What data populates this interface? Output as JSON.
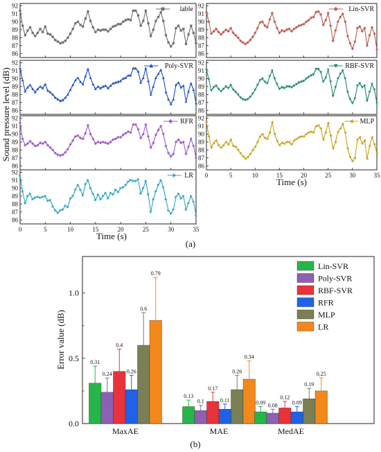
{
  "chart_data": [
    {
      "type": "line",
      "panel": "(a)",
      "ylabel": "Sound pressure level (dB)",
      "xlabel": "Time (s)",
      "xlim": [
        0,
        35
      ],
      "ylim": [
        85.5,
        92.3
      ],
      "xticks": [
        "0",
        "5",
        "10",
        "15",
        "20",
        "25",
        "30",
        "35"
      ],
      "yticks": [
        "86",
        "87",
        "88",
        "89",
        "90",
        "91",
        "92"
      ],
      "x": [
        0,
        0.5,
        1,
        1.5,
        2,
        2.5,
        3,
        3.5,
        4,
        4.5,
        5,
        5.5,
        6,
        6.5,
        7,
        7.5,
        8,
        8.5,
        9,
        9.5,
        10,
        10.5,
        11,
        11.5,
        12,
        12.5,
        13,
        13.5,
        14,
        14.5,
        15,
        15.5,
        16,
        16.5,
        17,
        17.5,
        18,
        18.5,
        19,
        19.5,
        20,
        20.5,
        21,
        21.5,
        22,
        22.5,
        23,
        23.5,
        24,
        24.5,
        25,
        25.5,
        26,
        26.5,
        27,
        27.5,
        28,
        28.5,
        29,
        29.5,
        30,
        30.5,
        31,
        31.5,
        32,
        32.5,
        33,
        33.5,
        34,
        34.5,
        35
      ],
      "series": [
        {
          "name": "lable",
          "color": "#6e6e6e",
          "marker": "square",
          "values": [
            91.4,
            89.5,
            88.3,
            88.9,
            89.3,
            88.6,
            88.2,
            88.6,
            89.1,
            88.7,
            89.4,
            88.5,
            88.4,
            88.1,
            87.7,
            87.5,
            87.3,
            87.4,
            87.6,
            88.0,
            88.5,
            89.1,
            89.8,
            90.0,
            89.6,
            89.4,
            90.4,
            91.3,
            90.1,
            89.3,
            88.7,
            89.0,
            88.9,
            89.0,
            89.0,
            88.8,
            89.1,
            89.4,
            89.5,
            89.7,
            89.7,
            90.0,
            90.2,
            90.3,
            90.2,
            91.4,
            91.4,
            90.8,
            89.5,
            90.1,
            91.4,
            89.8,
            88.2,
            89.0,
            90.1,
            90.6,
            91.2,
            90.1,
            88.3,
            87.4,
            86.9,
            87.3,
            89.2,
            89.5,
            88.9,
            89.1,
            87.2,
            88.4,
            89.5,
            88.6,
            87.3
          ]
        },
        {
          "name": "Lin-SVR",
          "color": "#c05a4f",
          "marker": "diamond",
          "values": [
            91.2,
            90.0,
            88.5,
            88.8,
            89.1,
            88.7,
            88.4,
            88.7,
            89.0,
            88.8,
            89.2,
            88.6,
            88.3,
            88.0,
            87.6,
            87.4,
            87.2,
            87.4,
            87.7,
            88.1,
            88.6,
            89.2,
            89.9,
            90.0,
            89.5,
            89.3,
            90.3,
            91.1,
            90.0,
            89.2,
            88.6,
            88.9,
            88.8,
            89.0,
            89.1,
            88.8,
            89.1,
            89.3,
            89.5,
            89.6,
            89.7,
            90.0,
            90.2,
            90.5,
            90.6,
            91.2,
            91.3,
            90.9,
            89.6,
            90.2,
            91.1,
            89.5,
            87.6,
            88.9,
            90.0,
            90.6,
            91.0,
            90.0,
            88.2,
            87.3,
            86.6,
            87.5,
            89.2,
            89.4,
            88.8,
            89.2,
            87.0,
            88.3,
            89.3,
            88.5,
            86.5
          ]
        },
        {
          "name": "Poly-SVR",
          "color": "#1f4fbf",
          "marker": "triangle-up",
          "values": [
            91.3,
            89.8,
            88.4,
            88.9,
            89.2,
            88.7,
            88.3,
            88.7,
            89.0,
            88.8,
            89.3,
            88.5,
            88.3,
            88.0,
            87.6,
            87.4,
            87.2,
            87.3,
            87.6,
            88.0,
            88.6,
            89.2,
            89.8,
            90.1,
            89.6,
            89.3,
            90.3,
            91.2,
            90.1,
            89.3,
            88.7,
            89.0,
            88.8,
            89.0,
            89.1,
            88.8,
            89.1,
            89.4,
            89.5,
            89.6,
            89.7,
            90.0,
            90.1,
            90.4,
            90.4,
            91.3,
            91.3,
            90.9,
            89.5,
            90.1,
            91.3,
            89.7,
            88.0,
            89.0,
            90.1,
            90.6,
            91.1,
            90.1,
            88.3,
            87.4,
            86.8,
            87.4,
            89.2,
            89.5,
            88.9,
            89.1,
            87.1,
            88.4,
            89.4,
            88.6,
            86.9
          ]
        },
        {
          "name": "RBF-SVR",
          "color": "#1e8a6e",
          "marker": "triangle-down",
          "values": [
            91.1,
            89.9,
            88.5,
            88.9,
            89.1,
            88.7,
            88.4,
            88.7,
            89.0,
            88.8,
            89.2,
            88.6,
            88.3,
            88.0,
            87.6,
            87.4,
            87.3,
            87.4,
            87.7,
            88.1,
            88.6,
            89.2,
            89.8,
            90.0,
            89.6,
            89.4,
            90.3,
            91.0,
            90.0,
            89.3,
            88.7,
            88.9,
            88.8,
            89.0,
            89.0,
            88.9,
            89.1,
            89.3,
            89.5,
            89.6,
            89.7,
            90.0,
            90.2,
            90.4,
            90.5,
            91.2,
            91.2,
            90.8,
            89.6,
            90.1,
            91.1,
            89.6,
            87.8,
            88.9,
            90.0,
            90.6,
            91.0,
            90.0,
            88.3,
            87.4,
            86.9,
            87.5,
            89.1,
            89.4,
            88.9,
            89.1,
            87.2,
            88.3,
            89.3,
            88.6,
            86.9
          ]
        },
        {
          "name": "RFR",
          "color": "#a15cc9",
          "marker": "diamond",
          "values": [
            91.4,
            89.4,
            88.6,
            88.8,
            89.1,
            88.8,
            88.5,
            88.6,
            88.9,
            88.8,
            89.0,
            88.6,
            88.3,
            88.0,
            87.6,
            87.4,
            87.3,
            87.4,
            87.7,
            88.1,
            88.7,
            89.2,
            89.7,
            89.8,
            89.5,
            89.4,
            90.1,
            91.1,
            90.0,
            89.4,
            88.8,
            89.0,
            88.9,
            89.0,
            88.9,
            88.8,
            89.0,
            89.3,
            89.4,
            89.6,
            89.6,
            89.9,
            90.1,
            90.3,
            90.2,
            91.2,
            91.2,
            90.6,
            89.5,
            90.0,
            91.2,
            89.7,
            88.3,
            88.9,
            89.9,
            90.5,
            91.0,
            90.0,
            88.5,
            87.6,
            87.2,
            87.5,
            89.0,
            89.3,
            88.9,
            89.0,
            87.5,
            88.4,
            89.4,
            88.5,
            87.0
          ]
        },
        {
          "name": "MLP",
          "color": "#c9a21a",
          "marker": "triangle-left",
          "values": [
            91.5,
            89.7,
            88.3,
            88.9,
            89.2,
            88.6,
            88.3,
            88.6,
            89.0,
            88.7,
            89.3,
            88.5,
            88.4,
            88.0,
            87.6,
            87.2,
            86.9,
            87.1,
            87.5,
            88.0,
            88.4,
            89.0,
            89.7,
            90.0,
            89.5,
            89.4,
            90.2,
            91.5,
            90.0,
            89.1,
            88.6,
            88.9,
            88.8,
            89.0,
            89.0,
            88.7,
            89.2,
            89.4,
            89.6,
            89.7,
            89.7,
            90.0,
            90.2,
            90.3,
            90.2,
            91.0,
            91.1,
            90.7,
            89.3,
            90.2,
            91.4,
            89.8,
            88.2,
            89.0,
            90.3,
            90.7,
            91.3,
            90.2,
            88.2,
            87.1,
            86.6,
            87.0,
            89.3,
            89.6,
            88.8,
            89.2,
            86.9,
            88.5,
            89.6,
            88.7,
            87.6
          ]
        },
        {
          "name": "LR",
          "color": "#2ea6c6",
          "marker": "triangle-right",
          "values": [
            91.6,
            89.6,
            88.1,
            89.0,
            89.3,
            88.6,
            88.8,
            88.9,
            88.8,
            88.9,
            89.0,
            88.4,
            88.5,
            87.7,
            87.2,
            86.9,
            87.2,
            87.3,
            87.8,
            87.6,
            88.7,
            89.0,
            89.8,
            90.4,
            89.8,
            89.1,
            90.5,
            91.0,
            90.0,
            89.3,
            88.5,
            89.2,
            88.6,
            89.0,
            89.4,
            88.7,
            89.4,
            89.2,
            89.8,
            89.5,
            90.0,
            90.1,
            90.4,
            90.8,
            91.0,
            90.9,
            90.9,
            91.1,
            89.3,
            90.0,
            90.9,
            89.2,
            87.0,
            88.6,
            89.6,
            90.4,
            91.0,
            90.1,
            88.6,
            87.2,
            86.8,
            87.3,
            88.9,
            89.3,
            88.7,
            89.0,
            87.3,
            88.1,
            89.0,
            88.3,
            86.6
          ]
        }
      ]
    },
    {
      "type": "bar",
      "panel": "(b)",
      "ylabel": "Error value (dB)",
      "ylim": [
        0,
        1.28
      ],
      "yticks": [
        "0.0",
        "0.5",
        "1.0"
      ],
      "categories": [
        "MaxAE",
        "MAE",
        "MedAE"
      ],
      "series": [
        {
          "name": "Lin-SVR",
          "color": "#27b54a",
          "label_color": "#1f9c3c",
          "values": [
            0.31,
            0.13,
            0.09
          ],
          "labels": [
            "0.31",
            "0.13",
            "0.09"
          ],
          "error": [
            0.13,
            0.05,
            0.04
          ]
        },
        {
          "name": "Poly-SVR",
          "color": "#8e5fb5",
          "label_color": "#7a4fa8",
          "values": [
            0.24,
            0.1,
            0.08
          ],
          "labels": [
            "0.24",
            "0.1",
            "0.08"
          ],
          "error": [
            0.11,
            0.04,
            0.03
          ]
        },
        {
          "name": "RBF-SVR",
          "color": "#e8333a",
          "label_color": "#cc2a30",
          "values": [
            0.4,
            0.17,
            0.12
          ],
          "labels": [
            "0.4",
            "0.17",
            "0.12"
          ],
          "error": [
            0.17,
            0.07,
            0.05
          ]
        },
        {
          "name": "RFR",
          "color": "#1f62e8",
          "label_color": "#1a55cc",
          "values": [
            0.26,
            0.11,
            0.09
          ],
          "labels": [
            "0.26",
            "0.11",
            "0.09"
          ],
          "error": [
            0.11,
            0.04,
            0.04
          ]
        },
        {
          "name": "MLP",
          "color": "#7a7f55",
          "label_color": "#5f6a3a",
          "values": [
            0.6,
            0.26,
            0.19
          ],
          "labels": [
            "0.6",
            "0.26",
            "0.19"
          ],
          "error": [
            0.25,
            0.11,
            0.08
          ]
        },
        {
          "name": "LR",
          "color": "#f2891a",
          "label_color": "#e07b10",
          "values": [
            0.79,
            0.34,
            0.25
          ],
          "labels": [
            "0.79",
            "0.34",
            "0.25"
          ],
          "error": [
            0.33,
            0.14,
            0.1
          ]
        }
      ]
    }
  ]
}
